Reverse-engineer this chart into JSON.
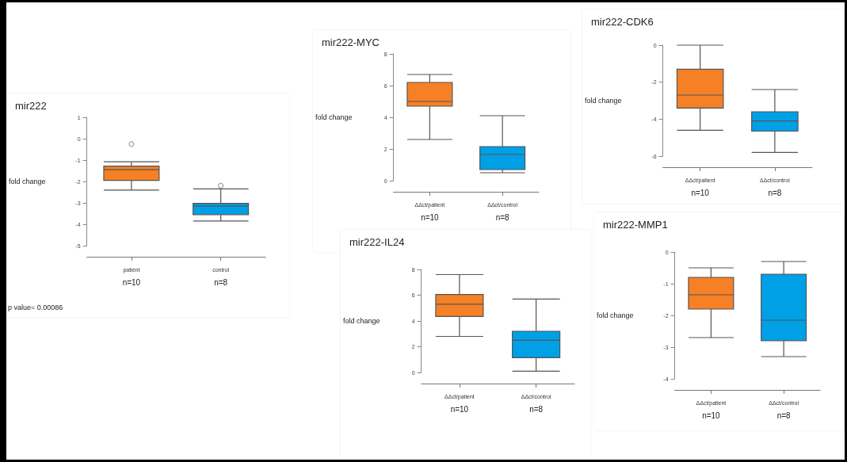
{
  "chart_data": [
    {
      "type": "box",
      "title": "mir222",
      "ylabel": "fold change",
      "categories": [
        "patient",
        "control"
      ],
      "colors": [
        "#f68026",
        "#00a0e6"
      ],
      "ylim": [
        -5,
        1
      ],
      "yticks": [
        -5,
        -4,
        -3,
        -2,
        -1,
        0,
        1
      ],
      "boxes": [
        {
          "low": -2.4,
          "q1": -1.95,
          "median": -1.45,
          "q3": -1.28,
          "high": -1.08,
          "outliers": [
            -0.25
          ]
        },
        {
          "low": -3.85,
          "q1": -3.55,
          "median": -3.15,
          "q3": -3.02,
          "high": -2.35,
          "outliers": [
            -2.2
          ]
        }
      ],
      "annotations": [
        "n=10",
        "n=8",
        "p value= 0.00086"
      ]
    },
    {
      "type": "box",
      "title": "mir222-MYC",
      "ylabel": "fold change",
      "categories": [
        "ΔΔct/patient",
        "ΔΔct/control"
      ],
      "colors": [
        "#f68026",
        "#00a0e6"
      ],
      "ylim": [
        0,
        8
      ],
      "yticks": [
        0,
        2,
        4,
        6,
        8
      ],
      "boxes": [
        {
          "low": 2.6,
          "q1": 4.7,
          "median": 5.0,
          "q3": 6.2,
          "high": 6.7
        },
        {
          "low": 0.5,
          "q1": 0.7,
          "median": 1.65,
          "q3": 2.15,
          "high": 4.1
        }
      ],
      "annotations": [
        "n=10",
        "n=8"
      ]
    },
    {
      "type": "box",
      "title": "mir222-CDK6",
      "ylabel": "fold change",
      "categories": [
        "ΔΔct/patient",
        "ΔΔct/control"
      ],
      "colors": [
        "#f68026",
        "#00a0e6"
      ],
      "ylim": [
        -6,
        0
      ],
      "yticks": [
        -6,
        -4,
        -2,
        0
      ],
      "boxes": [
        {
          "low": -4.6,
          "q1": -3.4,
          "median": -2.7,
          "q3": -1.3,
          "high": 0
        },
        {
          "low": -5.8,
          "q1": -4.65,
          "median": -4.1,
          "q3": -3.6,
          "high": -2.4
        }
      ],
      "annotations": [
        "n=10",
        "n=8"
      ]
    },
    {
      "type": "box",
      "title": "mir222-IL24",
      "ylabel": "fold change",
      "categories": [
        "ΔΔct/patient",
        "ΔΔct/control"
      ],
      "colors": [
        "#f68026",
        "#00a0e6"
      ],
      "ylim": [
        0,
        8
      ],
      "yticks": [
        0,
        2,
        4,
        6,
        8
      ],
      "boxes": [
        {
          "low": 2.8,
          "q1": 4.35,
          "median": 5.3,
          "q3": 6.05,
          "high": 7.6
        },
        {
          "low": 0.1,
          "q1": 1.15,
          "median": 2.5,
          "q3": 3.2,
          "high": 5.7
        }
      ],
      "annotations": [
        "n=10",
        "n=8"
      ]
    },
    {
      "type": "box",
      "title": "mir222-MMP1",
      "ylabel": "fold change",
      "categories": [
        "ΔΔct/patient",
        "ΔΔct/control"
      ],
      "colors": [
        "#f68026",
        "#00a0e6"
      ],
      "ylim": [
        -4,
        0
      ],
      "yticks": [
        -4,
        -3,
        -2,
        -1,
        0
      ],
      "boxes": [
        {
          "low": -2.7,
          "q1": -1.8,
          "median": -1.35,
          "q3": -0.8,
          "high": -0.5
        },
        {
          "low": -3.3,
          "q1": -2.8,
          "median": -2.15,
          "q3": -0.7,
          "high": -0.3
        }
      ],
      "annotations": [
        "n=10",
        "n=8"
      ]
    }
  ]
}
